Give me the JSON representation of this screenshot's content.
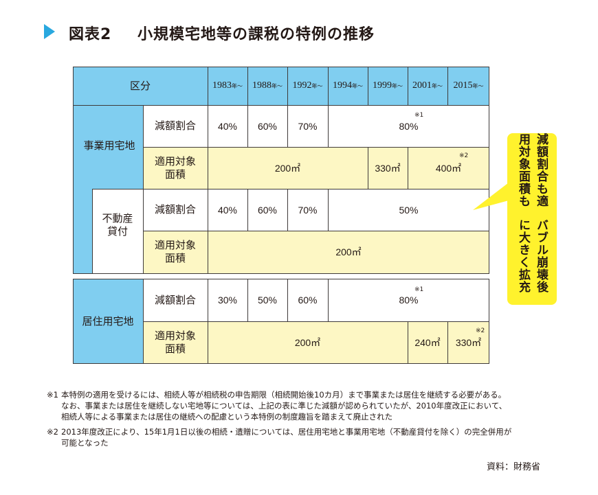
{
  "header": {
    "figure_label": "図表2",
    "title": "小規模宅地等の課税の特例の推移"
  },
  "table": {
    "header_label": "区分",
    "years": [
      {
        "year": "1983",
        "suffix": "年～"
      },
      {
        "year": "1988",
        "suffix": "年～"
      },
      {
        "year": "1992",
        "suffix": "年～"
      },
      {
        "year": "1994",
        "suffix": "年～"
      },
      {
        "year": "1999",
        "suffix": "年～"
      },
      {
        "year": "2001",
        "suffix": "年～"
      },
      {
        "year": "2015",
        "suffix": "年～"
      }
    ],
    "business": {
      "label": "事業用宅地",
      "rate_label": "減額割合",
      "rate_values": [
        "40%",
        "60%",
        "70%",
        "80%"
      ],
      "rate_note": "※1",
      "area_label_1": "適用対象",
      "area_label_2": "面積",
      "area_values": [
        "200㎡",
        "330㎡",
        "400㎡"
      ],
      "area_note": "※2"
    },
    "rental": {
      "label_1": "不動産",
      "label_2": "貸付",
      "rate_label": "減額割合",
      "rate_values": [
        "40%",
        "60%",
        "70%",
        "50%"
      ],
      "area_label_1": "適用対象",
      "area_label_2": "面積",
      "area_value": "200㎡"
    },
    "residential": {
      "label": "居住用宅地",
      "rate_label": "減額割合",
      "rate_values": [
        "30%",
        "50%",
        "60%",
        "80%"
      ],
      "rate_note": "※1",
      "area_label_1": "適用対象",
      "area_label_2": "面積",
      "area_values": [
        "200㎡",
        "240㎡",
        "330㎡"
      ],
      "area_note": "※2"
    }
  },
  "callout": {
    "line1": "減額割合も適用対象面積も",
    "line2": "バブル崩壊後に大きく拡充"
  },
  "footnotes": {
    "note1_mark": "※1",
    "note1_lines": [
      "本特例の適用を受けるには、相続人等が相続税の申告期限（相続開始後10カ月）まで事業または居住を継続する必要がある。",
      "なお、事業または居住を継続しない宅地等については、上記の表に準じた減額が認められていたが、2010年度改正において、",
      "相続人等による事業または居住の継続への配慮という本特例の制度趣旨を踏まえて廃止された"
    ],
    "note2_mark": "※2",
    "note2_lines": [
      "2013年度改正により、15年1月1日以後の相続・遺贈については、居住用宅地と事業用宅地（不動産貸付を除く）の完全併用が",
      "可能となった"
    ]
  },
  "source": "資料：財務省",
  "colors": {
    "header_blue": "#80cef0",
    "cell_yellow": "#fdf7c4",
    "callout_yellow": "#fff22d",
    "title_marker": "#29a8df"
  }
}
